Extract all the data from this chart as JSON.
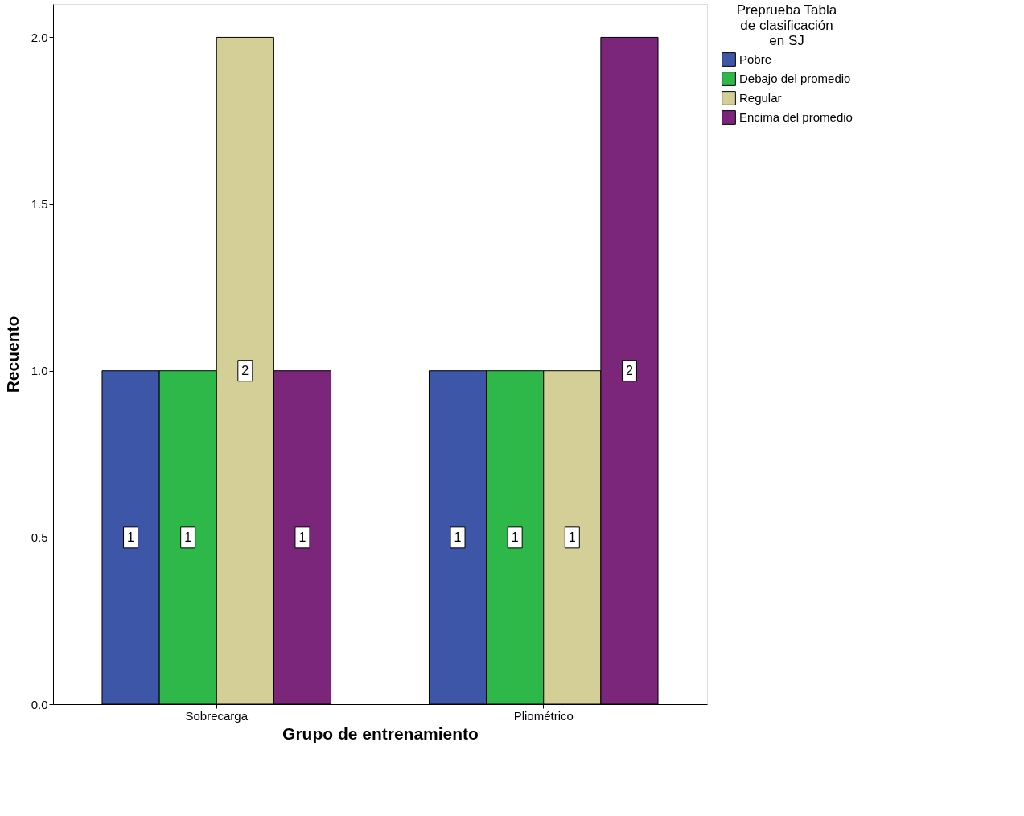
{
  "chart_data": {
    "type": "bar",
    "xlabel": "Grupo de entrenamiento",
    "ylabel": "Recuento",
    "legend_title": "Preprueba Tabla de clasificación en SJ",
    "categories": [
      "Sobrecarga",
      "Pliométrico"
    ],
    "series": [
      {
        "name": "Pobre",
        "color": "#3d56a8",
        "values": [
          1,
          1
        ]
      },
      {
        "name": "Debajo del promedio",
        "color": "#2eb84a",
        "values": [
          1,
          1
        ]
      },
      {
        "name": "Regular",
        "color": "#d4cf96",
        "values": [
          2,
          1
        ]
      },
      {
        "name": "Encima del promedio",
        "color": "#7b267a",
        "values": [
          1,
          2
        ]
      }
    ],
    "ylim": [
      0,
      2.1
    ],
    "yticks": [
      {
        "value": 0,
        "label": "0.0"
      },
      {
        "value": 0.5,
        "label": "0.5"
      },
      {
        "value": 1,
        "label": "1.0"
      },
      {
        "value": 1.5,
        "label": "1.5"
      },
      {
        "value": 2,
        "label": "2.0"
      }
    ],
    "grid": false,
    "legend": "top right",
    "data_labels": true
  }
}
